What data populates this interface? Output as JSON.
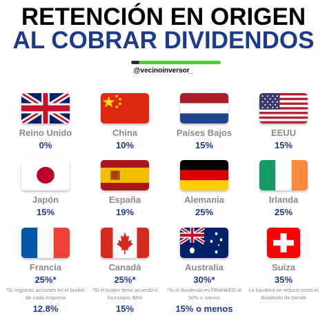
{
  "header": {
    "title_line1": "RETENCIÓN EN ORIGEN",
    "title_line2": "AL COBRAR DIVIDENDOS",
    "handle": "@vecinoinversor_",
    "accent_color": "#1d3b8a",
    "bar_color": "#4cd137"
  },
  "countries": [
    {
      "name": "Reino Unido",
      "rate": "0%",
      "flag": "uk-flag-icon"
    },
    {
      "name": "China",
      "rate": "10%",
      "flag": "china-flag-icon"
    },
    {
      "name": "Países Bajos",
      "rate": "15%",
      "flag": "netherlands-flag-icon"
    },
    {
      "name": "EEUU",
      "rate": "15%",
      "flag": "usa-flag-icon"
    },
    {
      "name": "Japón",
      "rate": "15%",
      "flag": "japan-flag-icon"
    },
    {
      "name": "España",
      "rate": "19%",
      "flag": "spain-flag-icon"
    },
    {
      "name": "Alemania",
      "rate": "25%",
      "flag": "germany-flag-icon"
    },
    {
      "name": "Irlanda",
      "rate": "25%",
      "flag": "ireland-flag-icon"
    },
    {
      "name": "Francia",
      "rate": "25%*",
      "flag": "france-flag-icon",
      "note": "*Si registras acciones en el broker de cada empresa",
      "extra": "12.8%"
    },
    {
      "name": "Canadá",
      "rate": "25%*",
      "flag": "canada-flag-icon",
      "note": "*Si el broker tiene acuerdo o formulario NR4",
      "extra": "15%"
    },
    {
      "name": "Australia",
      "rate": "30%*",
      "flag": "australia-flag-icon",
      "note": "*Si el dividendo es FRANKED al 50% o menos",
      "extra": "15% o menos"
    },
    {
      "name": "Suiza",
      "rate": "35%",
      "flag": "switzerland-flag-icon",
      "note": "La bandera se reduce como el dividendo de Nestlé"
    }
  ]
}
